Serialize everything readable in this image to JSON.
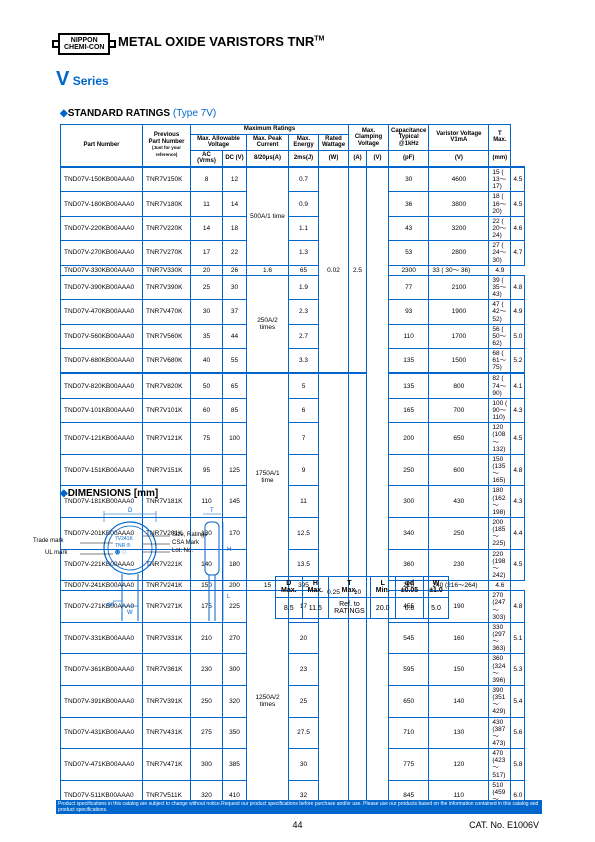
{
  "logo_line1": "NIPPON",
  "logo_line2": "CHEMI-CON",
  "main_title": "METAL OXIDE VARISTORS TNR",
  "main_title_tm": "TM",
  "series": "Series",
  "section_ratings": "STANDARD RATINGS",
  "type_label": "(Type 7V)",
  "headers": {
    "part_number": "Part Number",
    "previous": "Previous\nPart Number",
    "previous_note": "(Just for your reference)",
    "max_ratings": "Maximum Ratings",
    "max_voltage": "Max. Allowable\nVoltage",
    "ac": "AC (Vrms)",
    "dc": "DC (V)",
    "peak": "Max. Peak\nCurrent",
    "peak_unit": "8/20μs(A)",
    "energy": "Max.\nEnergy",
    "energy_unit": "2ms(J)",
    "wattage": "Rated\nWattage",
    "wattage_unit": "(W)",
    "clamping": "Max.\nClamping\nVoltage",
    "clamp_a": "(A)",
    "clamp_v": "(V)",
    "capacitance": "Capacitance\nTypical\n@1kHz",
    "capacitance_unit": "(pF)",
    "varistor": "Varistor Voltage\nV1mA",
    "varistor_unit": "(V)",
    "t_max": "T\nMax.",
    "t_unit": "(mm)"
  },
  "rows": [
    [
      "TND07V-150KB00AAA0",
      "TNR7V150K",
      "8",
      "12",
      "",
      "0.7",
      "",
      "",
      "",
      "30",
      "4600",
      "15 (  13～  17)",
      "4.5"
    ],
    [
      "TND07V-180KB00AAA0",
      "TNR7V180K",
      "11",
      "14",
      "",
      "0.9",
      "",
      "",
      "",
      "36",
      "3800",
      "18 (  16～  20)",
      "4.5"
    ],
    [
      "TND07V-220KB00AAA0",
      "TNR7V220K",
      "14",
      "18",
      "",
      "1.1",
      "",
      "",
      "",
      "43",
      "3200",
      "22 (  20～  24)",
      "4.6"
    ],
    [
      "TND07V-270KB00AAA0",
      "TNR7V270K",
      "17",
      "22",
      "500A/1 time",
      "1.3",
      "",
      "",
      "",
      "53",
      "2800",
      "27 (  24～  30)",
      "4.7"
    ],
    [
      "TND07V-330KB00AAA0",
      "TNR7V330K",
      "20",
      "26",
      "",
      "1.6",
      "0.02",
      "2.5",
      "",
      "65",
      "2300",
      "33 (  30～  36)",
      "4.9"
    ],
    [
      "TND07V-390KB00AAA0",
      "TNR7V390K",
      "25",
      "30",
      "250A/2 times",
      "1.9",
      "",
      "",
      "",
      "77",
      "2100",
      "39 (  35～  43)",
      "4.8"
    ],
    [
      "TND07V-470KB00AAA0",
      "TNR7V470K",
      "30",
      "37",
      "",
      "2.3",
      "",
      "",
      "",
      "93",
      "1900",
      "47 (  42～  52)",
      "4.9"
    ],
    [
      "TND07V-560KB00AAA0",
      "TNR7V560K",
      "35",
      "44",
      "",
      "2.7",
      "",
      "",
      "",
      "110",
      "1700",
      "56 (  50～  62)",
      "5.0"
    ],
    [
      "TND07V-680KB00AAA0",
      "TNR7V680K",
      "40",
      "55",
      "",
      "3.3",
      "",
      "",
      "",
      "135",
      "1500",
      "68 (  61～  75)",
      "5.2"
    ],
    [
      "TND07V-820KB00AAA0",
      "TNR7V820K",
      "50",
      "65",
      "",
      "5",
      "",
      "",
      "",
      "135",
      "800",
      "82 (  74～  90)",
      "4.1"
    ],
    [
      "TND07V-101KB00AAA0",
      "TNR7V101K",
      "60",
      "85",
      "",
      "6",
      "",
      "",
      "",
      "165",
      "700",
      "100 (  90～110)",
      "4.3"
    ],
    [
      "TND07V-121KB00AAA0",
      "TNR7V121K",
      "75",
      "100",
      "",
      "7",
      "",
      "",
      "",
      "200",
      "650",
      "120 (108～132)",
      "4.5"
    ],
    [
      "TND07V-151KB00AAA0",
      "TNR7V151K",
      "95",
      "125",
      "",
      "9",
      "",
      "",
      "",
      "250",
      "600",
      "150 (135～165)",
      "4.8"
    ],
    [
      "TND07V-181KB00AAA0",
      "TNR7V181K",
      "110",
      "145",
      "",
      "11",
      "",
      "",
      "",
      "300",
      "430",
      "180 (162～198)",
      "4.3"
    ],
    [
      "TND07V-201KB00AAA0",
      "TNR7V201K",
      "130",
      "170",
      "",
      "12.5",
      "",
      "",
      "",
      "340",
      "250",
      "200 (185～225)",
      "4.4"
    ],
    [
      "TND07V-221KB00AAA0",
      "TNR7V221K",
      "140",
      "180",
      "1750A/1 time",
      "13.5",
      "",
      "",
      "",
      "360",
      "230",
      "220 (198～242)",
      "4.5"
    ],
    [
      "TND07V-241KB00AAA0",
      "TNR7V241K",
      "150",
      "200",
      "",
      "15",
      "0.25",
      "10",
      "",
      "395",
      "210",
      "240 (216～264)",
      "4.6"
    ],
    [
      "TND07V-271KB00AAA0",
      "TNR7V271K",
      "175",
      "225",
      "1250A/2 times",
      "17",
      "",
      "",
      "",
      "455",
      "190",
      "270 (247～303)",
      "4.8"
    ],
    [
      "TND07V-331KB00AAA0",
      "TNR7V331K",
      "210",
      "270",
      "",
      "20",
      "",
      "",
      "",
      "545",
      "160",
      "330 (297～363)",
      "5.1"
    ],
    [
      "TND07V-361KB00AAA0",
      "TNR7V361K",
      "230",
      "300",
      "",
      "23",
      "",
      "",
      "",
      "595",
      "150",
      "360 (324～396)",
      "5.3"
    ],
    [
      "TND07V-391KB00AAA0",
      "TNR7V391K",
      "250",
      "320",
      "",
      "25",
      "",
      "",
      "",
      "650",
      "140",
      "390 (351～429)",
      "5.4"
    ],
    [
      "TND07V-431KB00AAA0",
      "TNR7V431K",
      "275",
      "350",
      "",
      "27.5",
      "",
      "",
      "",
      "710",
      "130",
      "430 (387～473)",
      "5.6"
    ],
    [
      "TND07V-471KB00AAA0",
      "TNR7V471K",
      "300",
      "385",
      "",
      "30",
      "",
      "",
      "",
      "775",
      "120",
      "470 (423～517)",
      "5.8"
    ],
    [
      "TND07V-511KB00AAA0",
      "TNR7V511K",
      "320",
      "410",
      "",
      "32",
      "",
      "",
      "",
      "845",
      "110",
      "510 (459～561)",
      "6.0"
    ]
  ],
  "section_dim": "DIMENSIONS  [mm]",
  "diagram_labels": {
    "trade_mark": "Trade mark",
    "ul_mark": "UL mark",
    "size_ratings": "Size, Ratings",
    "csa_mark": "CSA Mark",
    "lot_no": "Lot. No.",
    "chip_text": "7V241K\nTNR ®\n🇺🇦"
  },
  "dim_headers": [
    "D\nMax.",
    "H\nMax.",
    "T\nMax.",
    "L\nMin.",
    "φd\n±0.05",
    "W\n±1.0"
  ],
  "dim_row": [
    "8.5",
    "11.5",
    "Ref. to\nRATINGS",
    "20.0",
    "0.6",
    "5.0"
  ],
  "footer": "Product specifications in this catalog are subject to change without notice.Request our product specifications before purchase and/or use. Please use our products based on the information contained in this catalog and product specifications.",
  "page": "44",
  "cat": "CAT. No. E1006V"
}
